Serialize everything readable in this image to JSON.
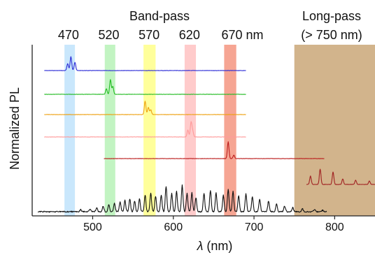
{
  "chart_data": {
    "type": "line",
    "xlabel_symbol": "λ",
    "xlabel_unit": " (nm)",
    "ylabel": "Normalized PL",
    "xlim": [
      425,
      850
    ],
    "xticks": [
      500,
      600,
      700,
      800
    ],
    "header_bandpass": "Band-pass",
    "header_longpass": "Long-pass",
    "header_longpass_sub": "(> 750 nm)",
    "filter_labels": [
      "470",
      "520",
      "570",
      "620",
      "670 nm"
    ],
    "filter_centers": [
      470,
      520,
      570,
      620,
      670
    ],
    "bandpass_filters": [
      {
        "center": 470,
        "range": [
          465,
          478
        ],
        "color": "#bfe3fb"
      },
      {
        "center": 520,
        "range": [
          515,
          528
        ],
        "color": "#b7f2b7"
      },
      {
        "center": 570,
        "range": [
          563,
          578
        ],
        "color": "#ffff8a"
      },
      {
        "center": 620,
        "range": [
          614,
          628
        ],
        "color": "#ffc2c2"
      },
      {
        "center": 670,
        "range": [
          663,
          678
        ],
        "color": "#f59580"
      }
    ],
    "longpass_filter": {
      "range": [
        750,
        850
      ],
      "color": "#d2b48c"
    },
    "series": [
      {
        "color": "#2b2bd6",
        "baseline": 101,
        "x_range": [
          440,
          690
        ],
        "peaks": [
          [
            469,
            10
          ],
          [
            473,
            20
          ],
          [
            478,
            12
          ]
        ]
      },
      {
        "color": "#22bb22",
        "baseline": 135,
        "x_range": [
          440,
          690
        ],
        "peaks": [
          [
            517,
            8
          ],
          [
            522,
            21
          ],
          [
            525,
            11
          ]
        ]
      },
      {
        "color": "#eea010",
        "baseline": 164,
        "x_range": [
          440,
          690
        ],
        "peaks": [
          [
            565,
            19
          ],
          [
            569,
            10
          ],
          [
            572,
            7
          ]
        ]
      },
      {
        "color": "#ff9a9a",
        "baseline": 196,
        "x_range": [
          440,
          690
        ],
        "peaks": [
          [
            618,
            10
          ],
          [
            622,
            21
          ],
          [
            624,
            8
          ]
        ]
      },
      {
        "color": "#bb1c1c",
        "baseline": 227,
        "x_range": [
          514,
          787
        ],
        "peaks": [
          [
            668,
            24
          ],
          [
            675,
            5
          ]
        ]
      },
      {
        "color": "#a02020",
        "baseline": 264,
        "x_range": [
          765,
          850
        ],
        "peaks": [
          [
            770,
            12
          ],
          [
            782,
            22
          ],
          [
            798,
            18
          ],
          [
            810,
            8
          ],
          [
            826,
            6
          ],
          [
            843,
            5
          ]
        ]
      },
      {
        "color": "#111111",
        "baseline": 303,
        "x_range": [
          432,
          790
        ],
        "peaks": [
          [
            485,
            3
          ],
          [
            497,
            4
          ],
          [
            505,
            5
          ],
          [
            513,
            8
          ],
          [
            520,
            10
          ],
          [
            527,
            12
          ],
          [
            534,
            14
          ],
          [
            540,
            16
          ],
          [
            546,
            18
          ],
          [
            552,
            15
          ],
          [
            558,
            19
          ],
          [
            565,
            24
          ],
          [
            572,
            27
          ],
          [
            578,
            22
          ],
          [
            585,
            24
          ],
          [
            591,
            36
          ],
          [
            598,
            26
          ],
          [
            604,
            29
          ],
          [
            611,
            38
          ],
          [
            617,
            26
          ],
          [
            623,
            27
          ],
          [
            628,
            20
          ],
          [
            638,
            26
          ],
          [
            646,
            31
          ],
          [
            653,
            27
          ],
          [
            662,
            24
          ],
          [
            668,
            32
          ],
          [
            674,
            29
          ],
          [
            681,
            23
          ],
          [
            690,
            26
          ],
          [
            698,
            22
          ],
          [
            707,
            18
          ],
          [
            718,
            15
          ],
          [
            728,
            11
          ],
          [
            738,
            8
          ],
          [
            748,
            6
          ],
          [
            760,
            4
          ],
          [
            775,
            3
          ],
          [
            785,
            2
          ]
        ]
      }
    ]
  }
}
